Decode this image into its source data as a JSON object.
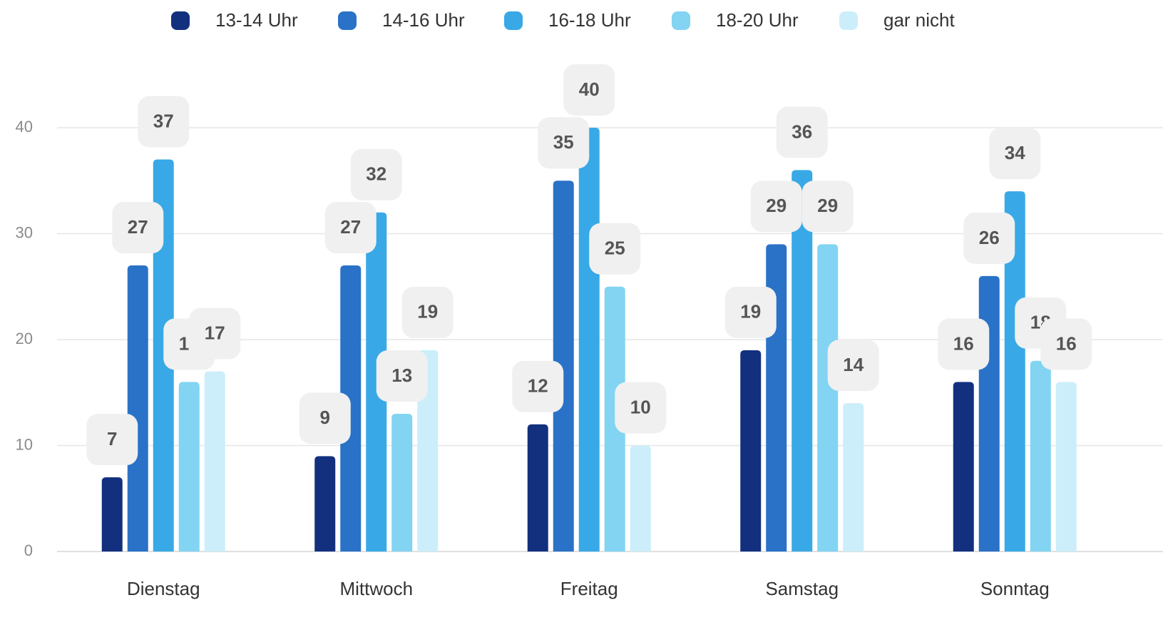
{
  "chart_data": {
    "type": "bar",
    "categories": [
      "Dienstag",
      "Mittwoch",
      "Freitag",
      "Samstag",
      "Sonntag"
    ],
    "series": [
      {
        "name": "13-14 Uhr",
        "color": "#13307f",
        "values": [
          7,
          9,
          12,
          19,
          16
        ]
      },
      {
        "name": "14-16 Uhr",
        "color": "#2a72c7",
        "values": [
          27,
          27,
          35,
          29,
          26
        ]
      },
      {
        "name": "16-18 Uhr",
        "color": "#38a9e6",
        "values": [
          37,
          32,
          40,
          36,
          34
        ]
      },
      {
        "name": "18-20 Uhr",
        "color": "#82d4f2",
        "values": [
          16,
          13,
          25,
          29,
          18
        ]
      },
      {
        "name": "gar nicht",
        "color": "#cbeefa",
        "values": [
          17,
          19,
          10,
          14,
          16
        ]
      }
    ],
    "ylim": [
      0,
      40
    ],
    "yticks": [
      0,
      10,
      20,
      30,
      40
    ],
    "grid": true
  }
}
